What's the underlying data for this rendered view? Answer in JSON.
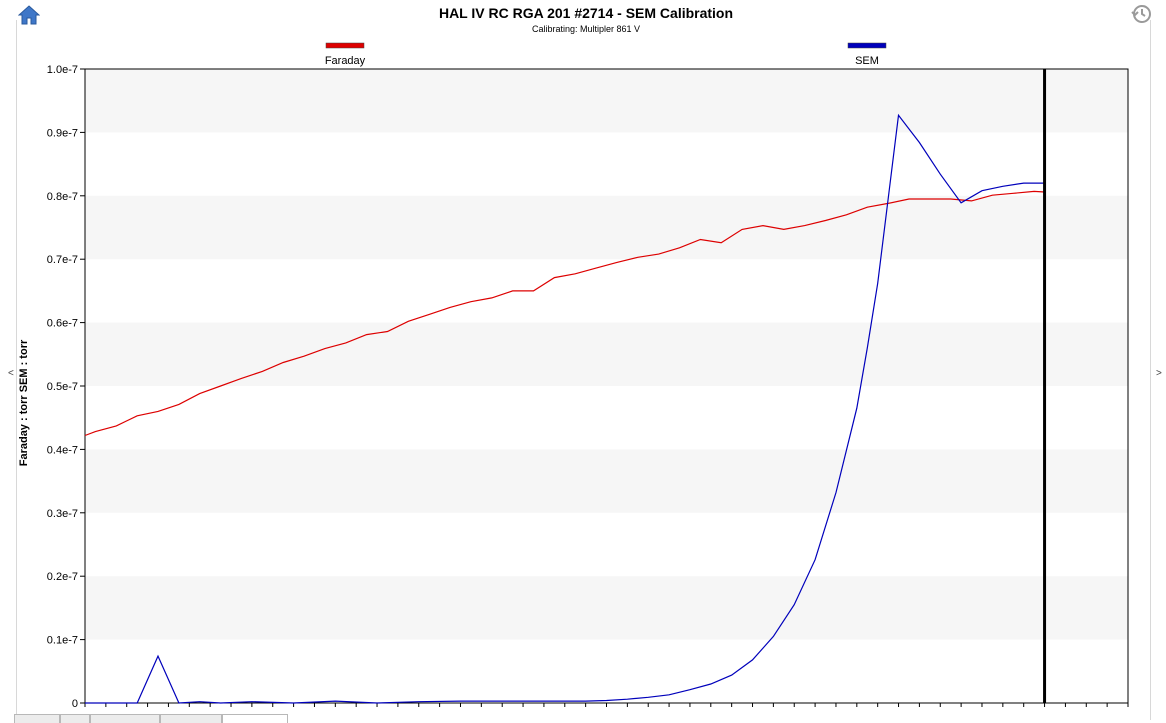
{
  "toolbar": {
    "home_icon": "home-icon",
    "history_icon": "history-icon"
  },
  "side_toggles": {
    "left": "<",
    "right": ">"
  },
  "colors": {
    "faraday": "#dd0000",
    "sem": "#0000bb",
    "band": "#f6f6f6",
    "marker": "#000000"
  },
  "chart_data": {
    "type": "line",
    "title": "HAL IV RC RGA 201 #2714 - SEM Calibration",
    "subtitle": "Calibrating: Multipler 861 V",
    "ylabel": "Faraday : torr SEM : torr",
    "ylim": [
      0,
      1e-07
    ],
    "yticks": [
      {
        "value": 0,
        "label": "0"
      },
      {
        "value": 1e-08,
        "label": "0.1e-7"
      },
      {
        "value": 2e-08,
        "label": "0.2e-7"
      },
      {
        "value": 3e-08,
        "label": "0.3e-7"
      },
      {
        "value": 4e-08,
        "label": "0.4e-7"
      },
      {
        "value": 5e-08,
        "label": "0.5e-7"
      },
      {
        "value": 6e-08,
        "label": "0.6e-7"
      },
      {
        "value": 7e-08,
        "label": "0.7e-7"
      },
      {
        "value": 8e-08,
        "label": "0.8e-7"
      },
      {
        "value": 9e-08,
        "label": "0.9e-7"
      },
      {
        "value": 1e-07,
        "label": "1.0e-7"
      }
    ],
    "xlim": [
      0,
      50
    ],
    "grid_bands": true,
    "legend_placement": "top",
    "marker_x": 46,
    "series": [
      {
        "name": "Faraday",
        "color": "#dd0000",
        "x": [
          0,
          0.5,
          1.5,
          2.5,
          3.5,
          4.5,
          5.5,
          6.5,
          7.5,
          8.5,
          9.5,
          10.5,
          11.5,
          12.5,
          13.5,
          14.5,
          15.5,
          16.5,
          17.5,
          18.5,
          19.5,
          20.5,
          21.5,
          22.5,
          23.5,
          24.5,
          25.5,
          26.5,
          27.5,
          28.5,
          29.5,
          30.5,
          31.5,
          32.5,
          33.5,
          34.5,
          35.5,
          36.5,
          37.5,
          38.5,
          39.5,
          40.5,
          41.5,
          42.5,
          43.5,
          44.5,
          45.5,
          46
        ],
        "y": [
          4.22e-08,
          4.28e-08,
          4.37e-08,
          4.53e-08,
          4.6e-08,
          4.71e-08,
          4.88e-08,
          5e-08,
          5.12e-08,
          5.23e-08,
          5.37e-08,
          5.47e-08,
          5.59e-08,
          5.68e-08,
          5.81e-08,
          5.86e-08,
          6.02e-08,
          6.13e-08,
          6.24e-08,
          6.33e-08,
          6.39e-08,
          6.5e-08,
          6.5e-08,
          6.71e-08,
          6.77e-08,
          6.86e-08,
          6.95e-08,
          7.03e-08,
          7.08e-08,
          7.18e-08,
          7.31e-08,
          7.26e-08,
          7.47e-08,
          7.53e-08,
          7.47e-08,
          7.53e-08,
          7.61e-08,
          7.7e-08,
          7.82e-08,
          7.88e-08,
          7.95e-08,
          7.95e-08,
          7.95e-08,
          7.92e-08,
          8.01e-08,
          8.04e-08,
          8.07e-08,
          8.06e-08
        ]
      },
      {
        "name": "SEM",
        "color": "#0000bb",
        "x": [
          0,
          1,
          2,
          2.5,
          3.5,
          4.5,
          5.5,
          6.5,
          8,
          10,
          12,
          14,
          16,
          18,
          20,
          22,
          24,
          25,
          26,
          27,
          28,
          29,
          30,
          31,
          32,
          33,
          34,
          35,
          36,
          37,
          37.5,
          38,
          39,
          40,
          41,
          42,
          43,
          44,
          45,
          46
        ],
        "y": [
          0,
          0,
          0,
          0,
          7.4e-09,
          0,
          2e-10,
          0,
          2e-10,
          0,
          3e-10,
          0,
          2e-10,
          3e-10,
          3e-10,
          3e-10,
          3e-10,
          4e-10,
          6e-10,
          9e-10,
          1.3e-09,
          2.1e-09,
          3e-09,
          4.4e-09,
          6.8e-09,
          1.05e-08,
          1.55e-08,
          2.26e-08,
          3.32e-08,
          4.65e-08,
          5.6e-08,
          6.62e-08,
          9.27e-08,
          8.84e-08,
          8.34e-08,
          7.89e-08,
          8.08e-08,
          8.15e-08,
          8.2e-08,
          8.2e-08
        ]
      }
    ]
  }
}
